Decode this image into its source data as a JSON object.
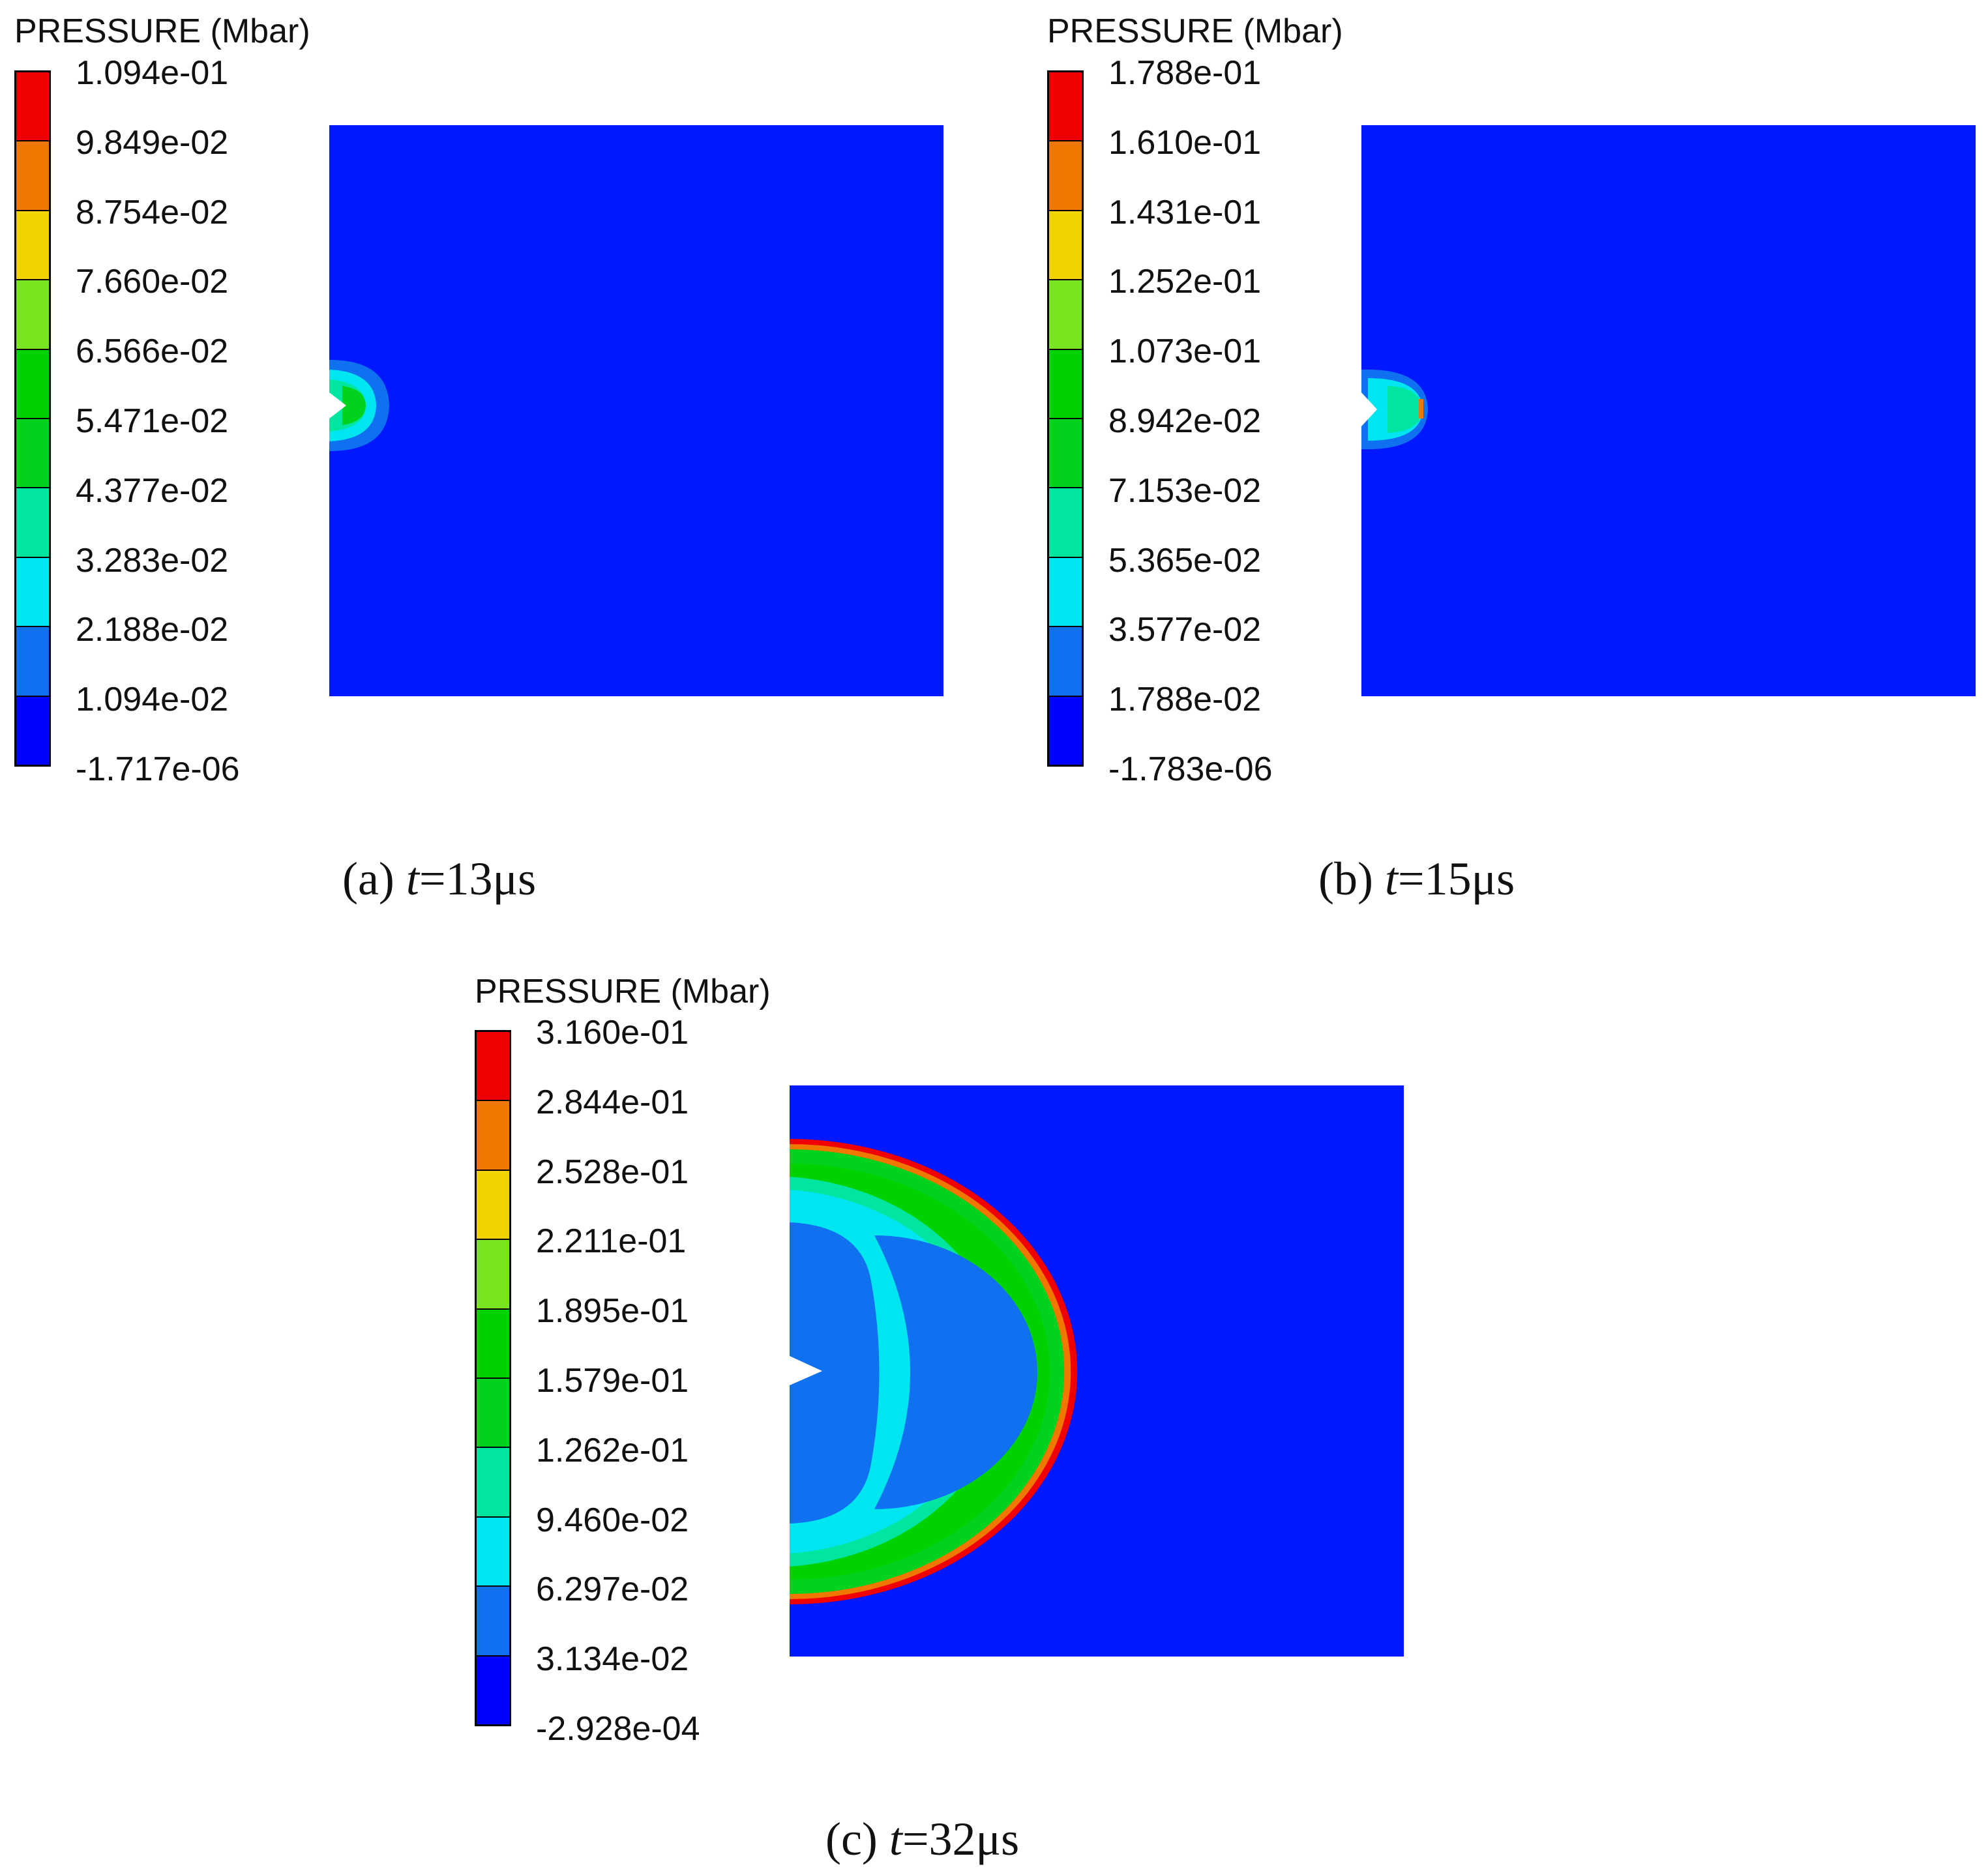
{
  "colors": {
    "scale": [
      "#0000ff",
      "#0f70f0",
      "#00e6f0",
      "#00e6a0",
      "#00d21e",
      "#00d200",
      "#78e61e",
      "#f0d200",
      "#f07800",
      "#f00000"
    ],
    "background_field": "#0018ff"
  },
  "panels": [
    {
      "legend_title": "PRESSURE (Mbar)",
      "ticks": [
        "1.094e-01",
        "9.849e-02",
        "8.754e-02",
        "7.660e-02",
        "6.566e-02",
        "5.471e-02",
        "4.377e-02",
        "3.283e-02",
        "2.188e-02",
        "1.094e-02",
        "-1.717e-06"
      ],
      "caption_prefix": "(a) ",
      "caption_var": "t",
      "caption_value": "=13μs"
    },
    {
      "legend_title": "PRESSURE (Mbar)",
      "ticks": [
        "1.788e-01",
        "1.610e-01",
        "1.431e-01",
        "1.252e-01",
        "1.073e-01",
        "8.942e-02",
        "7.153e-02",
        "5.365e-02",
        "3.577e-02",
        "1.788e-02",
        "-1.783e-06"
      ],
      "caption_prefix": "(b) ",
      "caption_var": "t",
      "caption_value": "=15μs"
    },
    {
      "legend_title": "PRESSURE (Mbar)",
      "ticks": [
        "3.160e-01",
        "2.844e-01",
        "2.528e-01",
        "2.211e-01",
        "1.895e-01",
        "1.579e-01",
        "1.262e-01",
        "9.460e-02",
        "6.297e-02",
        "3.134e-02",
        "-2.928e-04"
      ],
      "caption_prefix": "(c) ",
      "caption_var": "t",
      "caption_value": "=32μs"
    }
  ]
}
